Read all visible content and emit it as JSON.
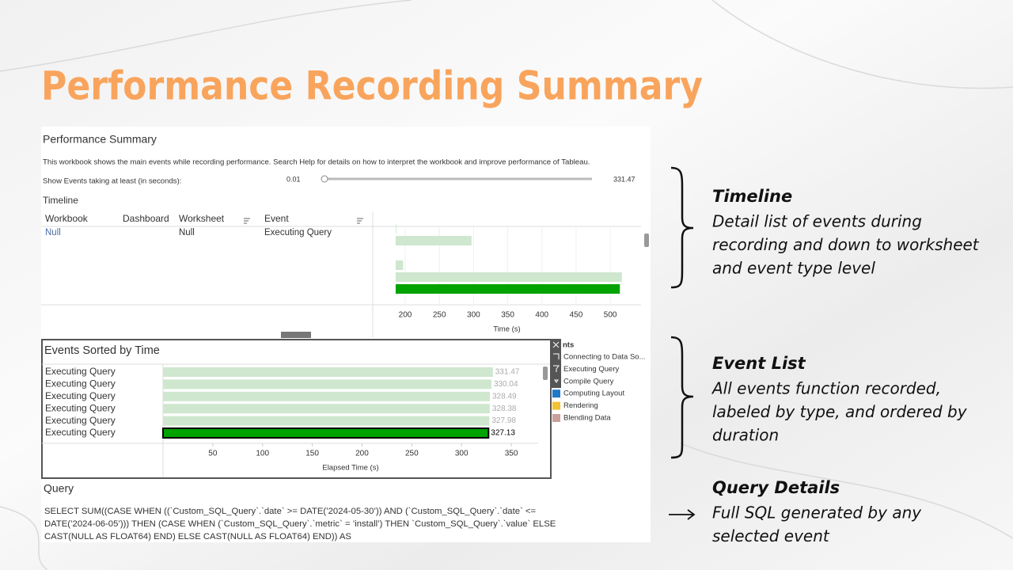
{
  "header": {
    "title": "Performance Recording Summary"
  },
  "workbook": {
    "title": "Performance Summary",
    "description": "This workbook shows the main events while recording performance. Search Help for details on how to interpret the workbook and improve performance of Tableau.",
    "filter": {
      "label": "Show Events taking at least (in seconds):",
      "min": 0.01,
      "max": 331.47
    },
    "timeline": {
      "heading": "Timeline",
      "columns": [
        "Workbook",
        "Dashboard",
        "Worksheet",
        "Event"
      ],
      "row": {
        "workbook": "Null",
        "worksheet": "Null",
        "event": "Executing Query"
      }
    },
    "legend": {
      "heading": "nts",
      "items": [
        {
          "label": "Connecting to Data So..."
        },
        {
          "label": "Executing Query"
        },
        {
          "label": "Compile Query"
        },
        {
          "label": "Computing Layout",
          "color": "#1f78c8"
        },
        {
          "label": "Rendering",
          "color": "#f1c232"
        },
        {
          "label": "Blending Data",
          "color": "#c9a09a"
        }
      ]
    },
    "query": {
      "heading": "Query",
      "lines": [
        "SELECT SUM((CASE WHEN ((`Custom_SQL_Query`.`date` >= DATE(’2024-05-30’)) AND (`Custom_SQL_Query`.`date` <=",
        "DATE(’2024-06-05’))) THEN (CASE WHEN (`Custom_SQL_Query`.`metric` = ’install’) THEN `Custom_SQL_Query`.`value` ELSE",
        "CAST(NULL AS FLOAT64) END) ELSE CAST(NULL AS FLOAT64) END)) AS"
      ]
    }
  },
  "chart_data": [
    {
      "type": "gantt",
      "x_label": "Time (s)",
      "starts": [
        186,
        186,
        186,
        186,
        186
      ],
      "ends": [
        187,
        297,
        197,
        517,
        514
      ],
      "colors": [
        "#cfe6cf",
        "#cfe6cf",
        "#cfe6cf",
        "#cfe6cf",
        "#00a300"
      ],
      "xlim": [
        152.5,
        545
      ],
      "xticks": [
        200,
        250,
        300,
        350,
        400,
        450,
        500
      ],
      "grid": true
    },
    {
      "type": "bar",
      "title": "Events Sorted by Time",
      "x_label": "Elapsed Time (s)",
      "categories": [
        "Executing Query",
        "Executing Query",
        "Executing Query",
        "Executing Query",
        "Executing Query",
        "Executing Query"
      ],
      "values": [
        331.47,
        330.04,
        328.49,
        328.38,
        327.98,
        327.13
      ],
      "colors": [
        "#cfe6cf",
        "#cfe6cf",
        "#cfe6cf",
        "#cfe6cf",
        "#cfe6cf",
        "#00a300"
      ],
      "xlim": [
        0,
        377
      ],
      "xticks": [
        50,
        100,
        150,
        200,
        250,
        300,
        350
      ]
    }
  ],
  "annotations": [
    {
      "title": "Timeline",
      "lines": [
        "Detail list of events during",
        "recording and down to worksheet",
        "and  event type level"
      ]
    },
    {
      "title": "Event List",
      "lines": [
        "All events function recorded,",
        "labeled by type, and ordered by",
        "duration"
      ]
    },
    {
      "title": "Query Details",
      "lines": [
        "Full SQL generated by any",
        "selected event"
      ]
    }
  ]
}
